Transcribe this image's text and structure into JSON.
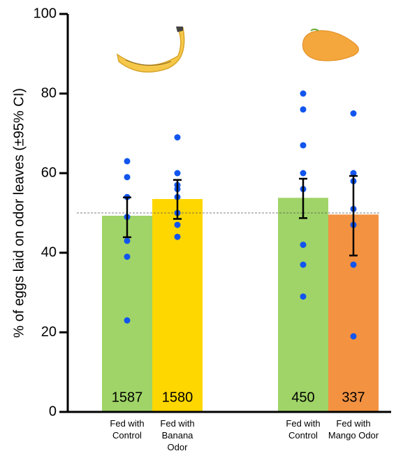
{
  "chart_data": {
    "type": "bar",
    "y_label": "% of eggs laid on odor leaves (±95% CI)",
    "categories": [
      "Fed with Control",
      "Fed with Banana Odor",
      "Fed with Control",
      "Fed with Mango Odor"
    ],
    "values": [
      49.3,
      53.5,
      53.8,
      49.6
    ],
    "ci_low": [
      43.9,
      48.5,
      48.7,
      39.3
    ],
    "ci_high": [
      53.9,
      58.3,
      58.6,
      59.3
    ],
    "colors": [
      "#a0d468",
      "#ffd700",
      "#a0d468",
      "#f39241"
    ],
    "n": [
      "1587",
      "1580",
      "450",
      "337"
    ],
    "points": [
      [
        63,
        59,
        54,
        49,
        43,
        39,
        23
      ],
      [
        69,
        60,
        57,
        56,
        54,
        50,
        47,
        44
      ],
      [
        80,
        76,
        67,
        60,
        56,
        42,
        37,
        29
      ],
      [
        75,
        60,
        58,
        51,
        47,
        37,
        19
      ]
    ],
    "point_color": "#1155ee",
    "reference_line": 50,
    "ylim": [
      0,
      100
    ],
    "yticks": [
      0,
      20,
      40,
      60,
      80,
      100
    ]
  }
}
